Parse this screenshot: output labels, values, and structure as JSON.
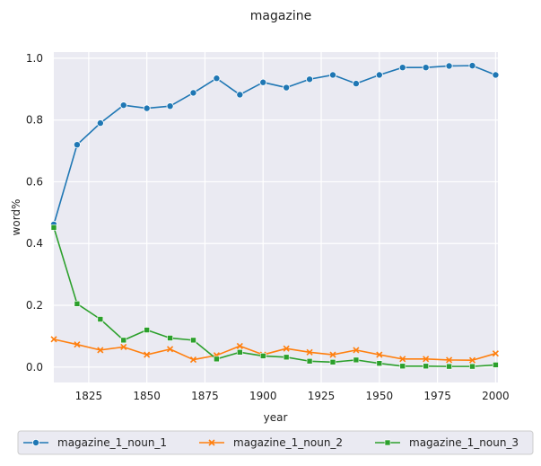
{
  "chart_data": {
    "type": "line",
    "title": "magazine",
    "xlabel": "year",
    "ylabel": "word%",
    "xlim": [
      1810,
      2001
    ],
    "ylim": [
      -0.05,
      1.02
    ],
    "x_ticks": [
      1825,
      1850,
      1875,
      1900,
      1925,
      1950,
      1975,
      2000
    ],
    "y_ticks": [
      0.0,
      0.2,
      0.4,
      0.6,
      0.8,
      1.0
    ],
    "x_tick_labels": [
      "1825",
      "1850",
      "1875",
      "1900",
      "1925",
      "1950",
      "1975",
      "2000"
    ],
    "y_tick_labels": [
      "0.0",
      "0.2",
      "0.4",
      "0.6",
      "0.8",
      "1.0"
    ],
    "grid": true,
    "legend_position": "bottom",
    "x": [
      1810,
      1820,
      1830,
      1840,
      1850,
      1860,
      1870,
      1880,
      1890,
      1900,
      1910,
      1920,
      1930,
      1940,
      1950,
      1960,
      1970,
      1980,
      1990,
      2000
    ],
    "series": [
      {
        "name": "magazine_1_noun_1",
        "color": "#1f77b4",
        "marker": "circle",
        "values": [
          0.462,
          0.72,
          0.79,
          0.848,
          0.838,
          0.845,
          0.888,
          0.935,
          0.882,
          0.922,
          0.905,
          0.932,
          0.946,
          0.918,
          0.946,
          0.97,
          0.97,
          0.975,
          0.976,
          0.946
        ]
      },
      {
        "name": "magazine_1_noun_2",
        "color": "#ff7f0e",
        "marker": "x",
        "values": [
          0.09,
          0.073,
          0.055,
          0.065,
          0.04,
          0.058,
          0.024,
          0.038,
          0.068,
          0.04,
          0.06,
          0.048,
          0.04,
          0.055,
          0.04,
          0.026,
          0.026,
          0.023,
          0.022,
          0.044
        ]
      },
      {
        "name": "magazine_1_noun_3",
        "color": "#2ca02c",
        "marker": "square",
        "values": [
          0.452,
          0.205,
          0.155,
          0.087,
          0.12,
          0.094,
          0.087,
          0.026,
          0.048,
          0.036,
          0.032,
          0.019,
          0.016,
          0.023,
          0.012,
          0.003,
          0.003,
          0.002,
          0.002,
          0.007
        ]
      }
    ]
  }
}
